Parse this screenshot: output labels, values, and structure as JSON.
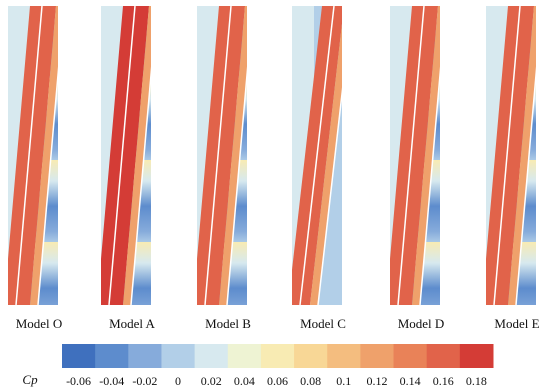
{
  "chart_data": {
    "type": "contour-panels",
    "panels": [
      "Model O",
      "Model A",
      "Model B",
      "Model C",
      "Model D",
      "Model E"
    ],
    "colorbar": {
      "label": "Cp",
      "ticks": [
        -0.06,
        -0.04,
        -0.02,
        0,
        0.02,
        0.04,
        0.06,
        0.08,
        0.1,
        0.12,
        0.14,
        0.16,
        0.18
      ],
      "colors": [
        "#3f70be",
        "#5d8ccd",
        "#86abdb",
        "#b2cfe8",
        "#d7e9ef",
        "#eef3d3",
        "#f8ebb3",
        "#f8d796",
        "#f4bd7f",
        "#efa16b",
        "#e98258",
        "#e1634a",
        "#d43c36"
      ]
    }
  }
}
